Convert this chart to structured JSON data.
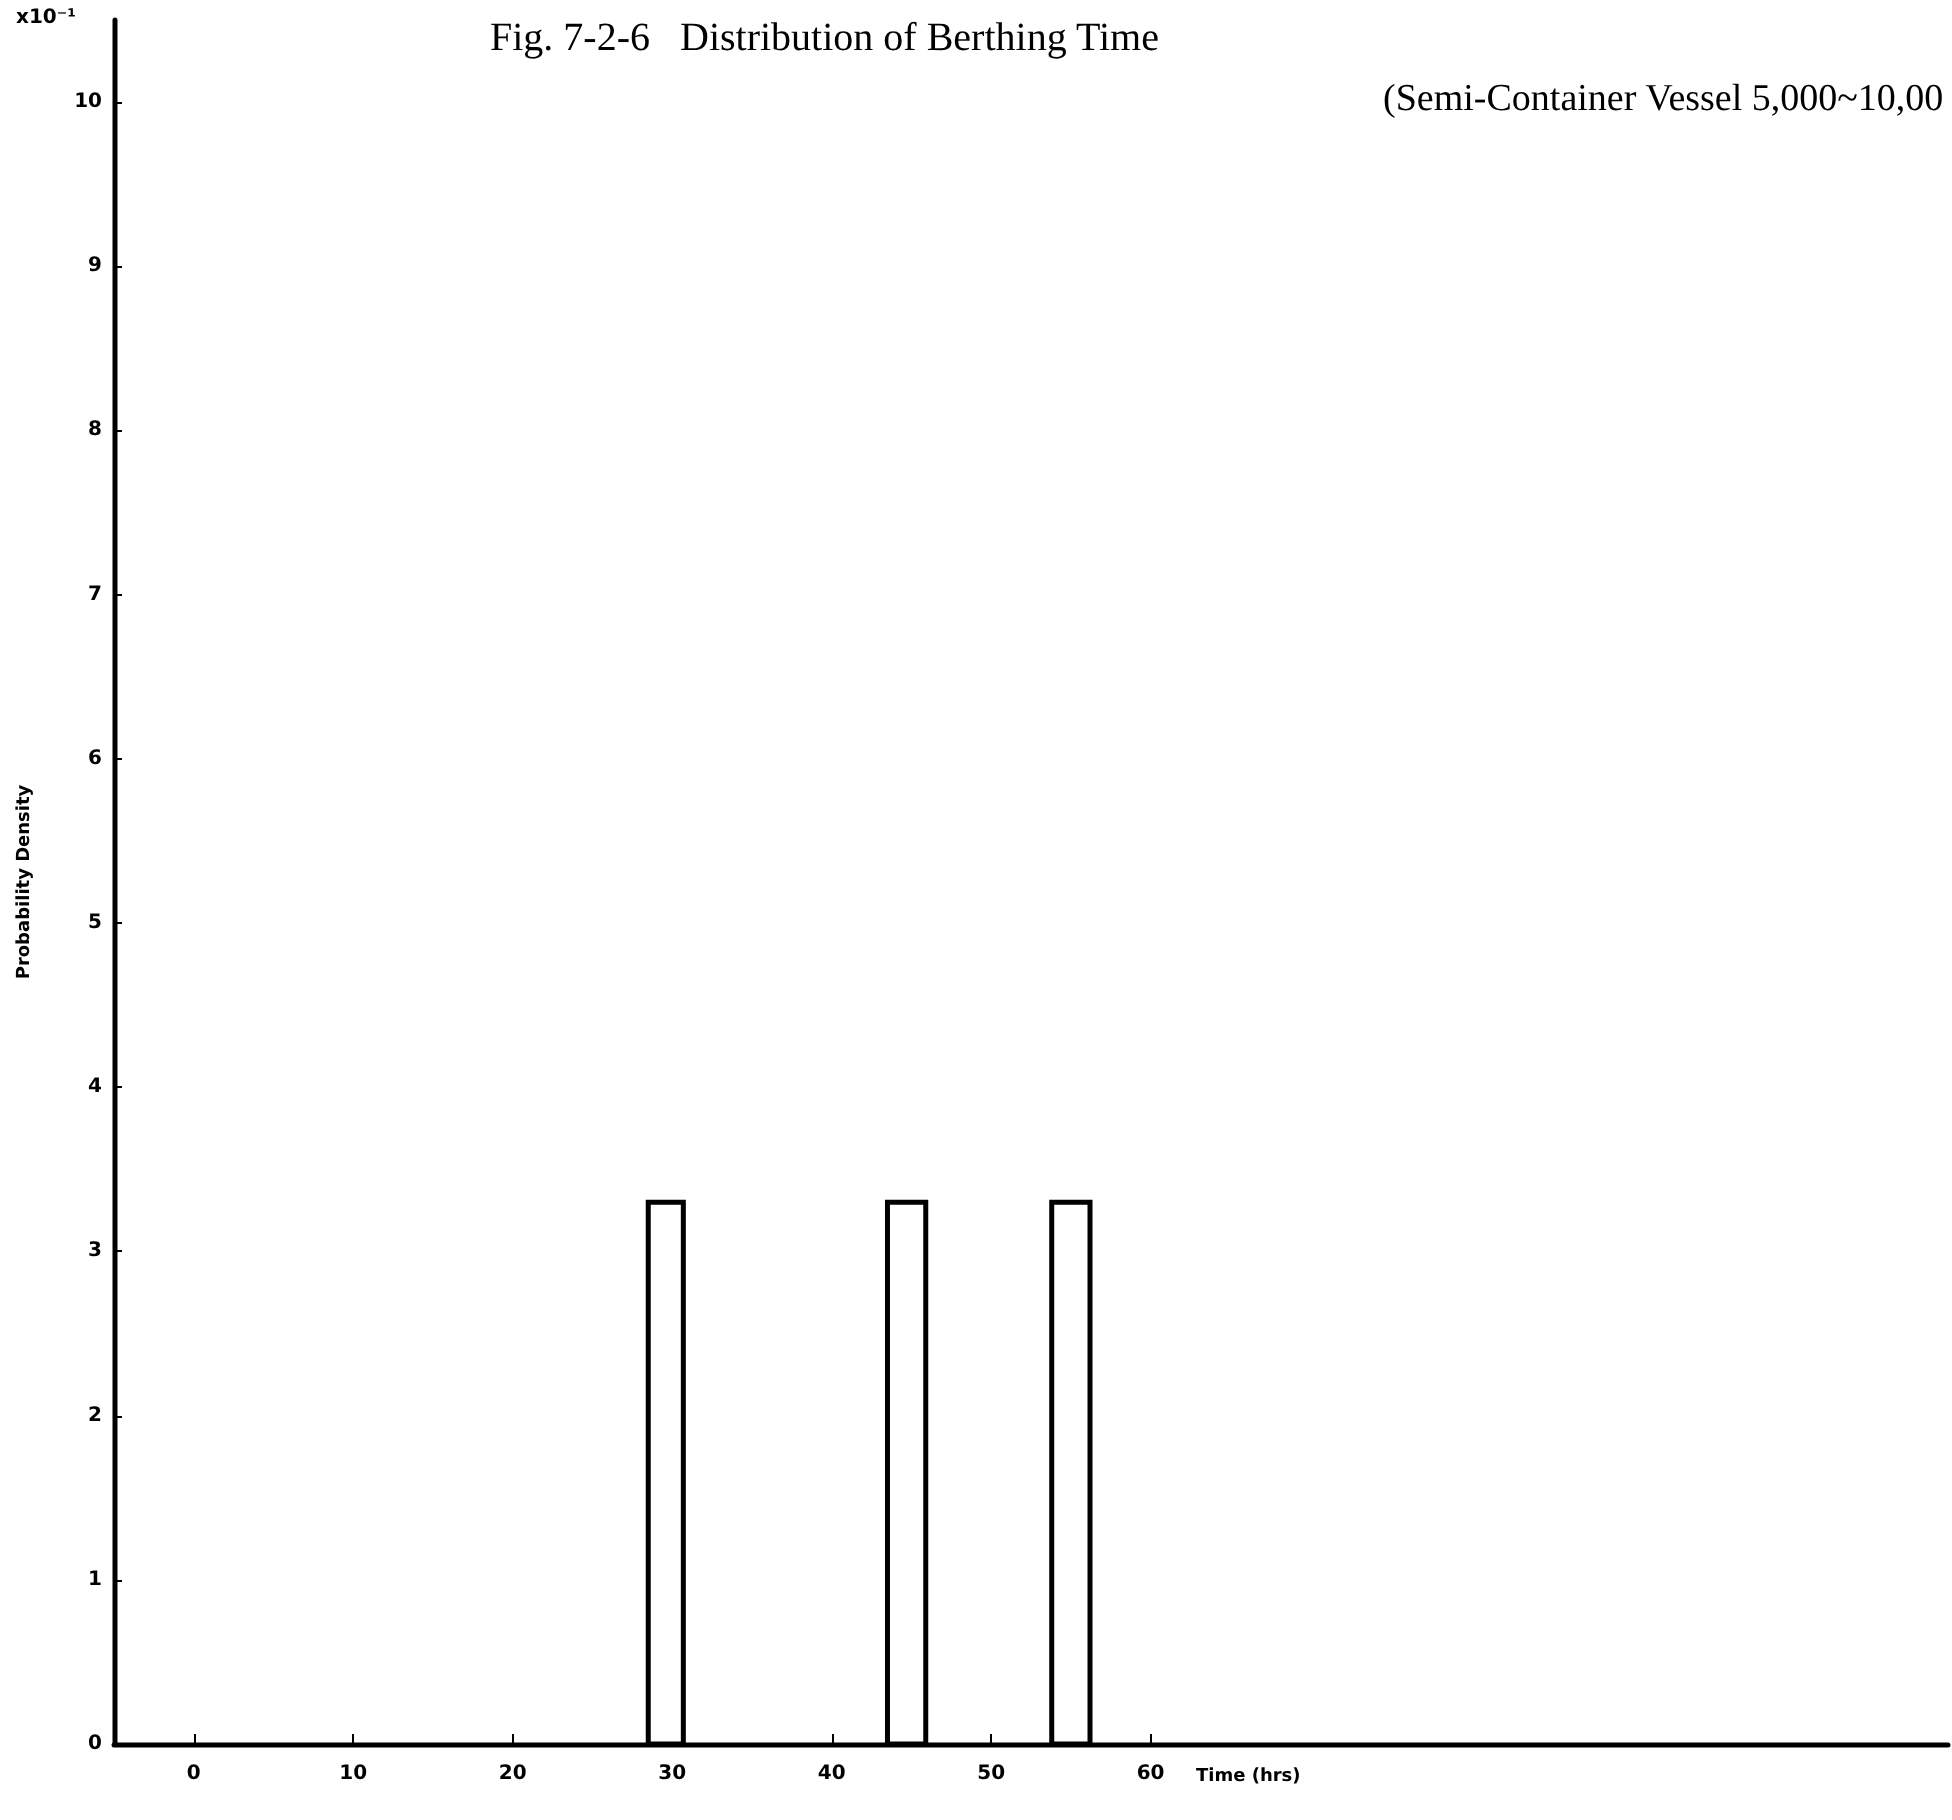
{
  "chart_data": {
    "type": "histogram",
    "title": "Fig. 7-2-6   Distribution of Berthing Time",
    "subtitle": "(Semi-Container Vessel 5,000~10,00",
    "xlabel": "Time (hrs)",
    "ylabel": "Probability Density",
    "annotations": [
      "x10⁻¹"
    ],
    "bins": [
      28.5,
      30.7,
      43.5,
      45.9,
      53.8,
      56.2
    ],
    "values": [
      3.3,
      0,
      3.3,
      0,
      3.3
    ],
    "color": "#000000",
    "xlim": [
      -5,
      110
    ],
    "xticks": [
      0,
      10,
      20,
      30,
      40,
      50,
      60
    ],
    "ylim": [
      0,
      10.5
    ],
    "yticks": [
      0,
      1,
      2,
      3,
      4,
      5,
      6,
      7,
      8,
      9,
      10
    ],
    "grid": false
  }
}
